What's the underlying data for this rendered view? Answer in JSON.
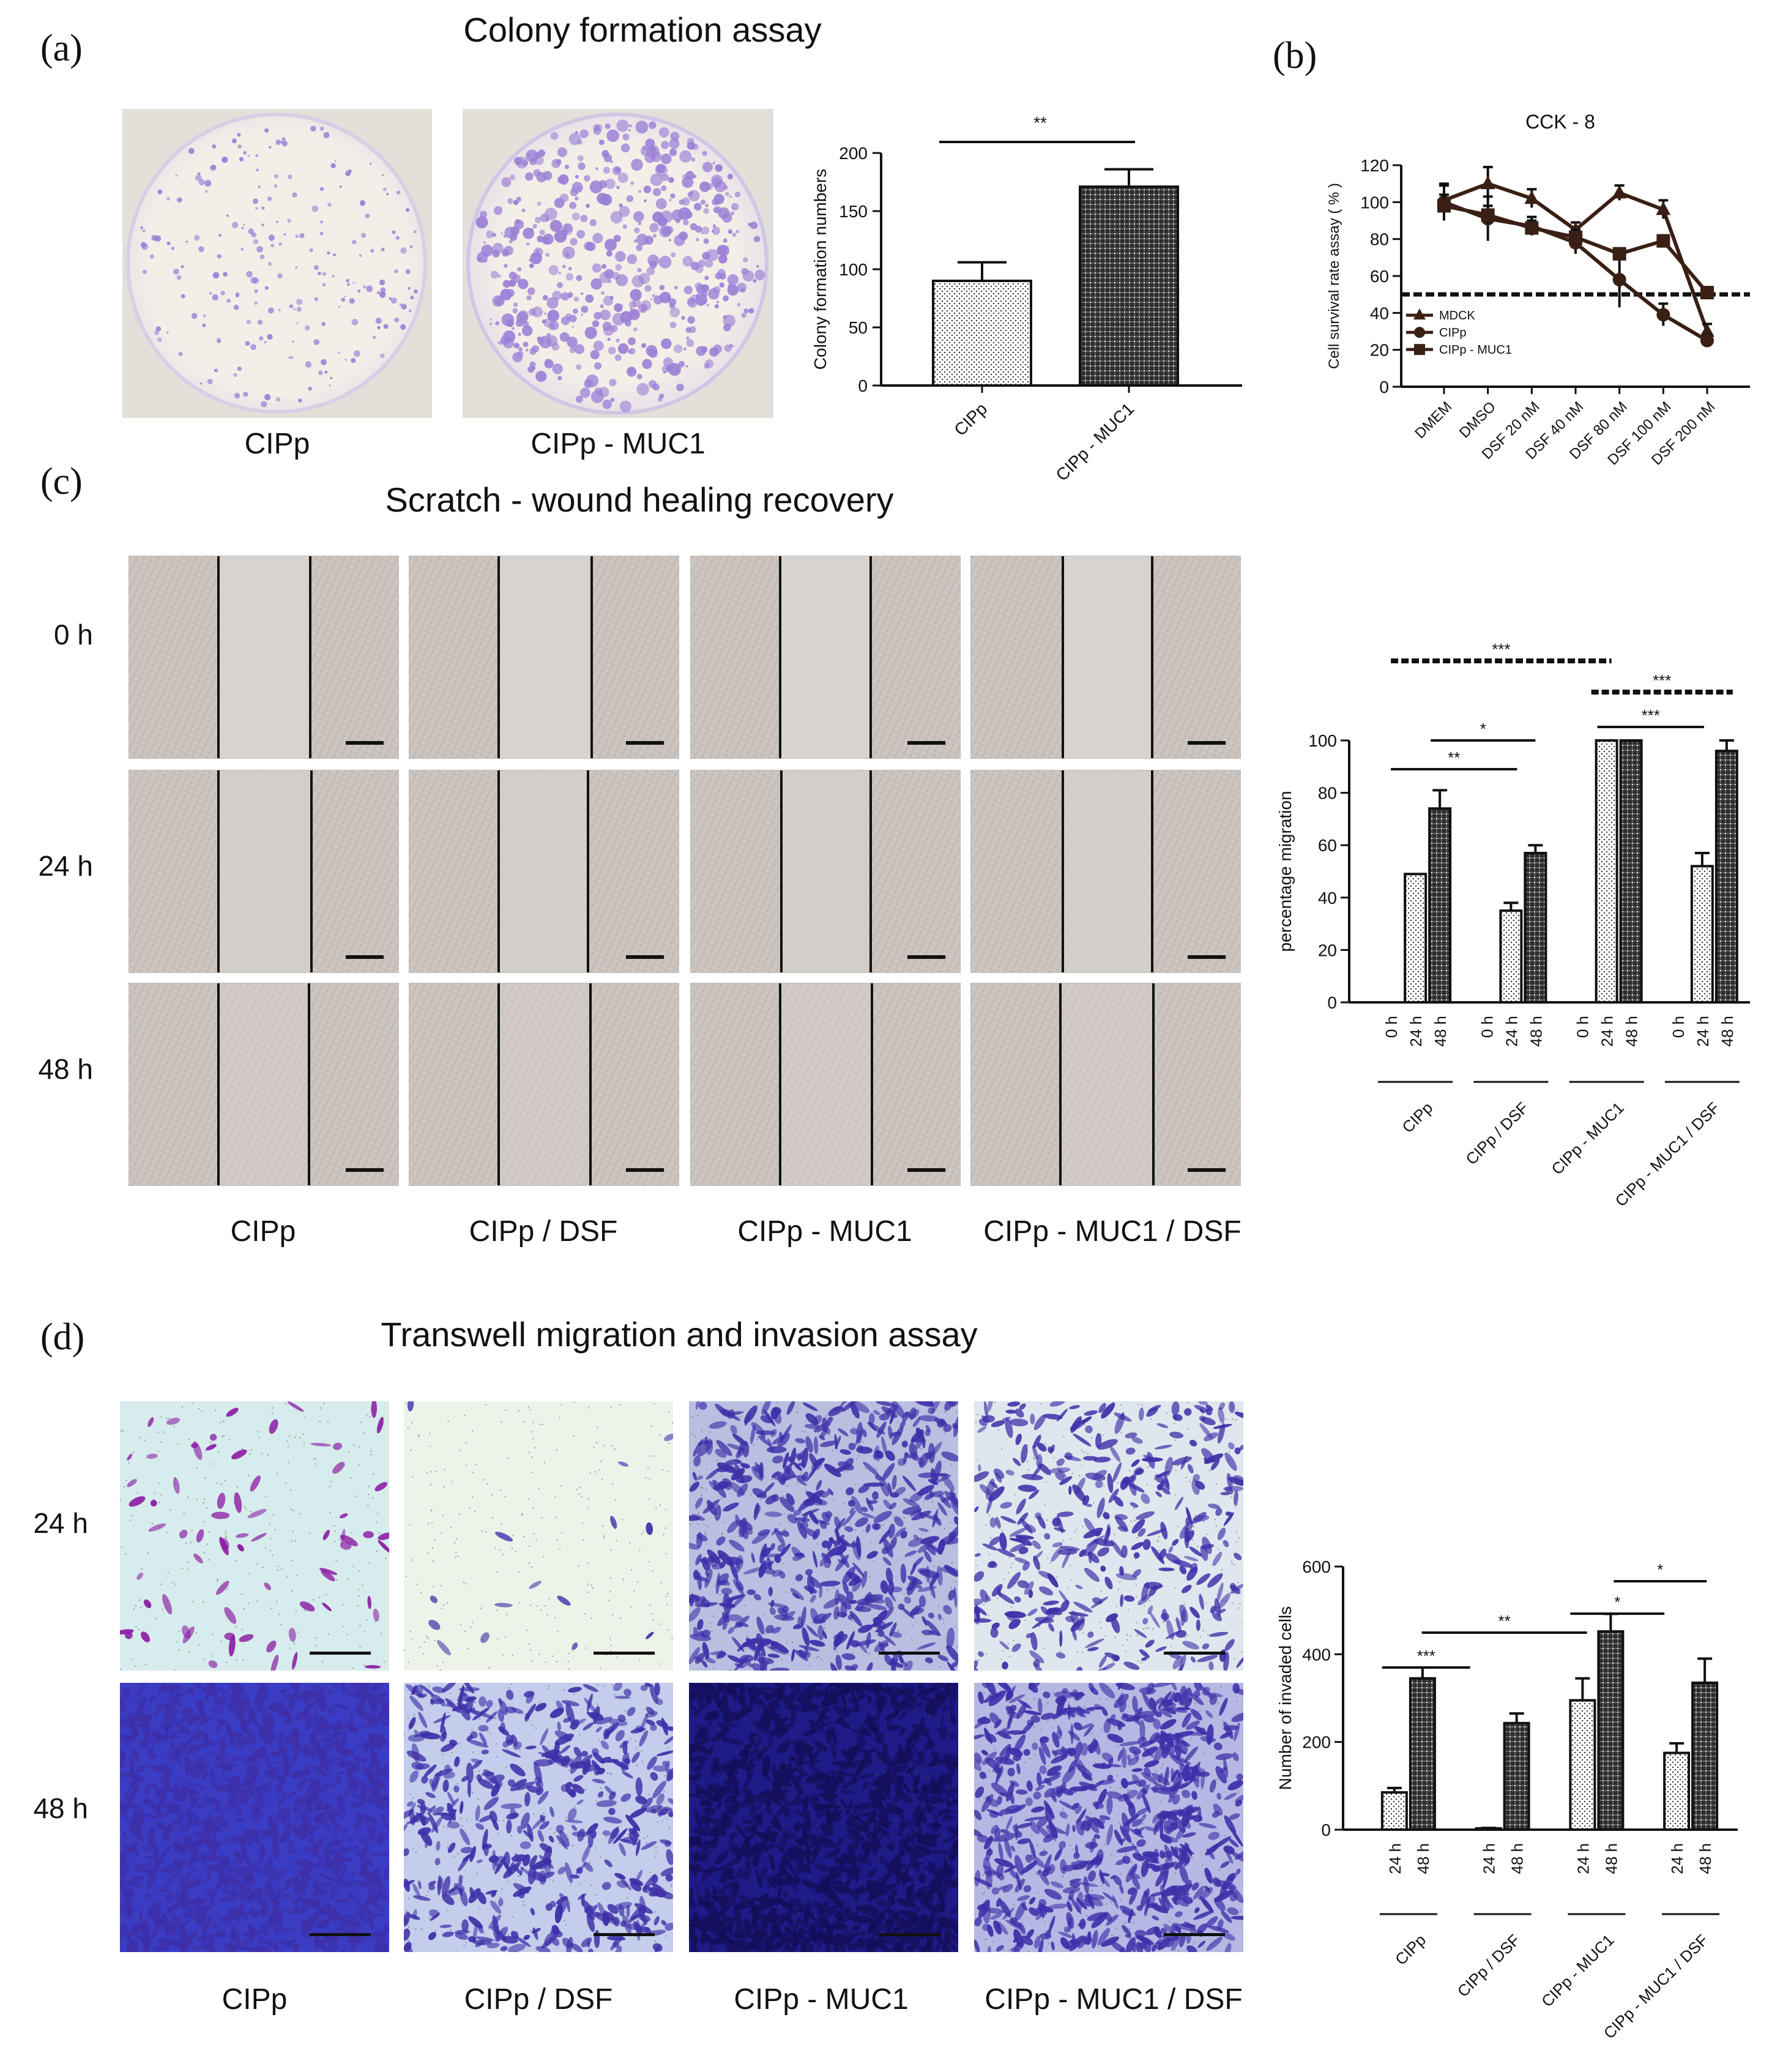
{
  "panels": {
    "a": {
      "letter": "(a)",
      "title": "Colony formation assay",
      "images": [
        {
          "label": "CIPp"
        },
        {
          "label": "CIPp - MUC1"
        }
      ]
    },
    "b": {
      "letter": "(b)"
    },
    "c": {
      "letter": "(c)",
      "title": "Scratch - wound healing recovery",
      "rows": [
        "0 h",
        "24 h",
        "48 h"
      ],
      "columns": [
        "CIPp",
        "CIPp / DSF",
        "CIPp - MUC1",
        "CIPp - MUC1 / DSF"
      ]
    },
    "d": {
      "letter": "(d)",
      "title": "Transwell migration and invasion assay",
      "rows": [
        "24 h",
        "48 h"
      ],
      "columns": [
        "CIPp",
        "CIPp / DSF",
        "CIPp - MUC1",
        "CIPp - MUC1 / DSF"
      ]
    }
  },
  "colors": {
    "dish_stain": "#9b7fd6",
    "transwell_stain": "#3d2fa8",
    "transwell_magenta": "#8b1aa3",
    "scratch_bg": "#cdc6c1"
  },
  "chart_data": [
    {
      "id": "colony",
      "type": "bar",
      "categories": [
        "CIPp",
        "CIPp - MUC1"
      ],
      "values": [
        90,
        171
      ],
      "errors": [
        16,
        15
      ],
      "patterns": [
        "dots",
        "crosshatch"
      ],
      "ylabel": "Colony formation numbers",
      "ylim": [
        0,
        200
      ],
      "yticks": [
        0,
        50,
        100,
        150,
        200
      ],
      "significance": [
        {
          "from": 0,
          "to": 1,
          "label": "**"
        }
      ]
    },
    {
      "id": "cck8",
      "type": "line",
      "title": "CCK - 8",
      "categories": [
        "DMEM",
        "DMSO",
        "DSF 20 nM",
        "DSF 40 nM",
        "DSF 80 nM",
        "DSF 100 nM",
        "DSF 200 nM"
      ],
      "series": [
        {
          "name": "MDCK",
          "marker": "triangle",
          "values": [
            101,
            110,
            102,
            85,
            105,
            96,
            30
          ],
          "errors": [
            8,
            9,
            5,
            4,
            4,
            5,
            4
          ]
        },
        {
          "name": "CIPp",
          "marker": "circle",
          "values": [
            100,
            91,
            87,
            78,
            58,
            39,
            25
          ],
          "errors": [
            10,
            12,
            5,
            6,
            15,
            6,
            3
          ]
        },
        {
          "name": "CIPp - MUC1",
          "marker": "square",
          "values": [
            98,
            93,
            86,
            81,
            72,
            79,
            51
          ],
          "errors": [
            6,
            5,
            4,
            4,
            3,
            3,
            2
          ]
        }
      ],
      "ylabel": "Cell survival rate assay ( % )",
      "ylim": [
        0,
        120
      ],
      "yticks": [
        0,
        20,
        40,
        60,
        80,
        100,
        120
      ],
      "reference_line": 50,
      "legend": "bottom-left"
    },
    {
      "id": "migration",
      "type": "bar",
      "groups": [
        "CIPp",
        "CIPp / DSF",
        "CIPp - MUC1",
        "CIPp - MUC1 / DSF"
      ],
      "timepoints": [
        "0 h",
        "24 h",
        "48 h"
      ],
      "series": [
        {
          "name": "0 h",
          "values": [
            0,
            0,
            0,
            0
          ]
        },
        {
          "name": "24 h",
          "pattern": "dots",
          "values": [
            49,
            35,
            100,
            52
          ],
          "errors": [
            0,
            3,
            0,
            5
          ]
        },
        {
          "name": "48 h",
          "pattern": "crosshatch",
          "values": [
            74,
            57,
            100,
            96
          ],
          "errors": [
            7,
            3,
            0,
            4
          ]
        }
      ],
      "ylabel": "percentage migration",
      "ylim": [
        0,
        100
      ],
      "yticks": [
        0,
        20,
        40,
        60,
        80,
        100
      ],
      "significance": [
        {
          "label": "***",
          "style": "dashed"
        },
        {
          "label": "***",
          "style": "dashed"
        },
        {
          "label": "*",
          "style": "solid"
        },
        {
          "label": "***",
          "style": "solid"
        },
        {
          "label": "**",
          "style": "solid"
        }
      ]
    },
    {
      "id": "invasion",
      "type": "bar",
      "groups": [
        "CIPp",
        "CIPp / DSF",
        "CIPp - MUC1",
        "CIPp - MUC1 / DSF"
      ],
      "timepoints": [
        "24 h",
        "48 h"
      ],
      "series": [
        {
          "name": "24 h",
          "pattern": "dots",
          "values": [
            85,
            3,
            295,
            175
          ],
          "errors": [
            10,
            1,
            50,
            22
          ]
        },
        {
          "name": "48 h",
          "pattern": "crosshatch",
          "values": [
            345,
            243,
            452,
            335
          ],
          "errors": [
            25,
            22,
            40,
            55
          ]
        }
      ],
      "ylabel": "Number of invaded cells",
      "ylim": [
        0,
        600
      ],
      "yticks": [
        0,
        200,
        400,
        600
      ],
      "significance": [
        {
          "label": "*"
        },
        {
          "label": "**"
        },
        {
          "label": "*"
        },
        {
          "label": "***"
        }
      ]
    }
  ]
}
